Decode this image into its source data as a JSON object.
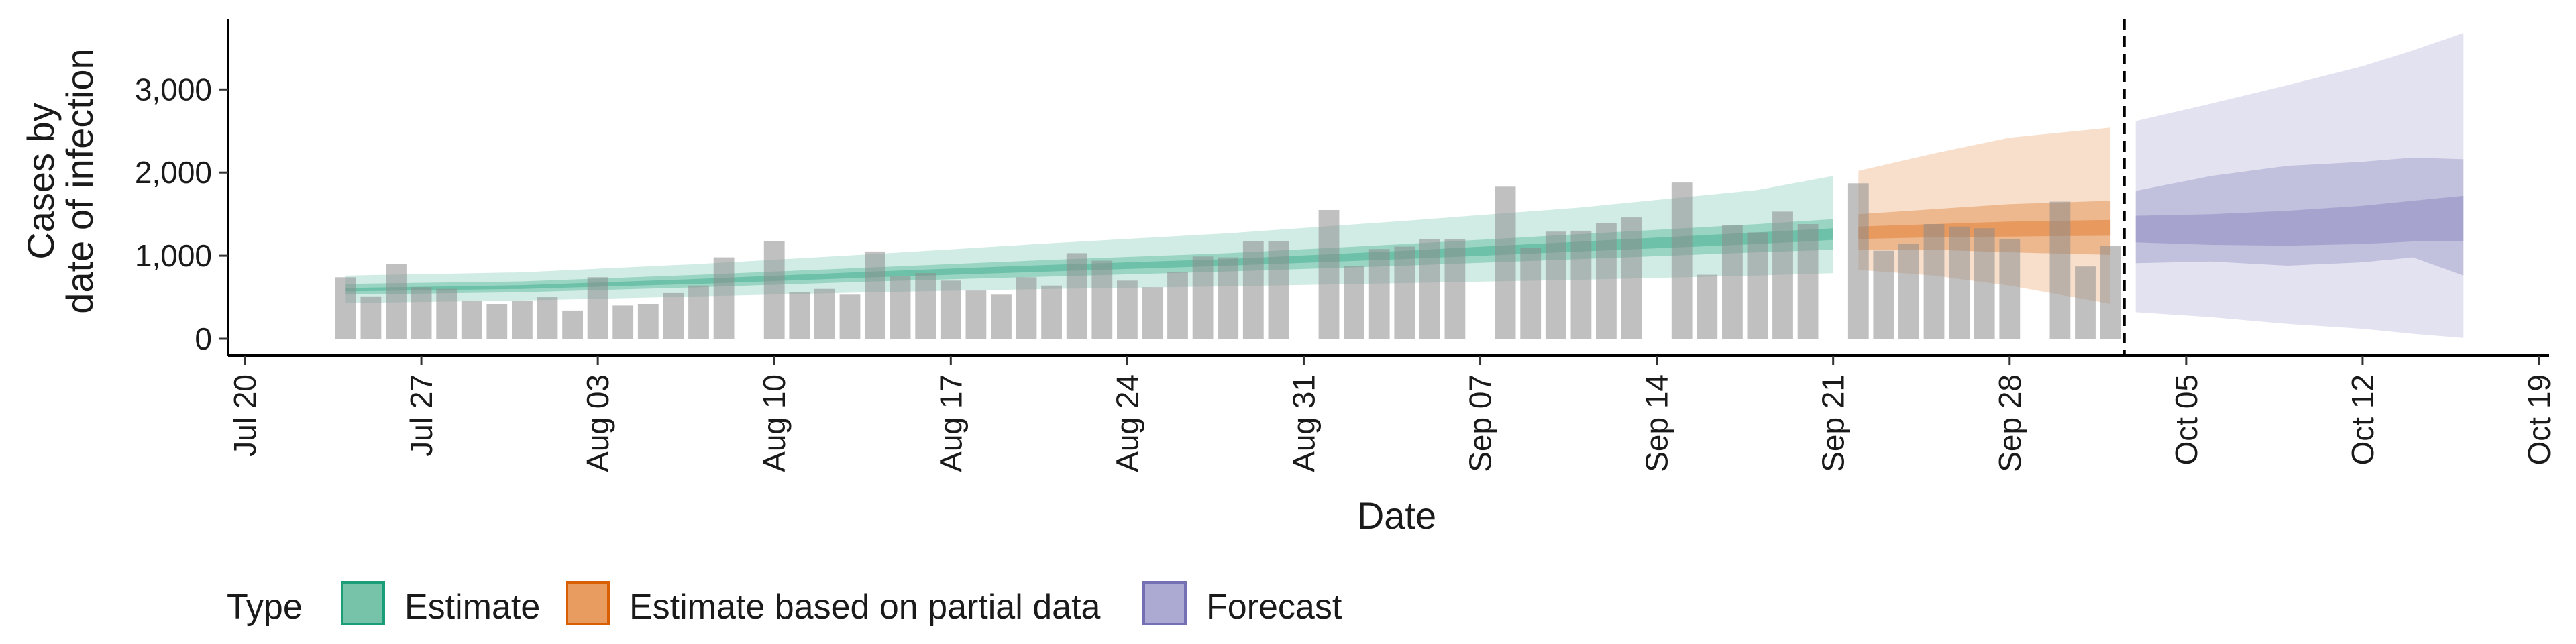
{
  "chart_data": {
    "type": "bar",
    "xlabel": "Date",
    "ylabel_lines": [
      "Cases by",
      "date of infection"
    ],
    "ylim": [
      0,
      3850
    ],
    "y_ticks": [
      0,
      1000,
      2000,
      3000
    ],
    "y_tick_labels": [
      "0",
      "1,000",
      "2,000",
      "3,000"
    ],
    "x_axis_start": "2020-07-20",
    "x_axis_end": "2020-10-19",
    "x_ticks": [
      "2020-07-20",
      "2020-07-27",
      "2020-08-03",
      "2020-08-10",
      "2020-08-17",
      "2020-08-24",
      "2020-08-31",
      "2020-09-07",
      "2020-09-14",
      "2020-09-21",
      "2020-09-28",
      "2020-10-05",
      "2020-10-12",
      "2020-10-19"
    ],
    "x_tick_labels": [
      "Jul 20",
      "Jul 27",
      "Aug 03",
      "Aug 10",
      "Aug 17",
      "Aug 24",
      "Aug 31",
      "Sep 07",
      "Sep 14",
      "Sep 21",
      "Sep 28",
      "Oct 05",
      "Oct 12",
      "Oct 19"
    ],
    "forecast_date": "2020-10-02",
    "observed_cases": {
      "dates": [
        "2020-07-24",
        "2020-07-25",
        "2020-07-26",
        "2020-07-27",
        "2020-07-28",
        "2020-07-29",
        "2020-07-30",
        "2020-07-31",
        "2020-08-01",
        "2020-08-02",
        "2020-08-03",
        "2020-08-04",
        "2020-08-05",
        "2020-08-06",
        "2020-08-07",
        "2020-08-08",
        "2020-08-09",
        "2020-08-10",
        "2020-08-11",
        "2020-08-12",
        "2020-08-13",
        "2020-08-14",
        "2020-08-15",
        "2020-08-16",
        "2020-08-17",
        "2020-08-18",
        "2020-08-19",
        "2020-08-20",
        "2020-08-21",
        "2020-08-22",
        "2020-08-23",
        "2020-08-24",
        "2020-08-25",
        "2020-08-26",
        "2020-08-27",
        "2020-08-28",
        "2020-08-29",
        "2020-08-30",
        "2020-08-31",
        "2020-09-01",
        "2020-09-02",
        "2020-09-03",
        "2020-09-04",
        "2020-09-05",
        "2020-09-06",
        "2020-09-07",
        "2020-09-08",
        "2020-09-09",
        "2020-09-10",
        "2020-09-11",
        "2020-09-12",
        "2020-09-13",
        "2020-09-14",
        "2020-09-15",
        "2020-09-16",
        "2020-09-17",
        "2020-09-18",
        "2020-09-19",
        "2020-09-20",
        "2020-09-21",
        "2020-09-22",
        "2020-09-23",
        "2020-09-24",
        "2020-09-25",
        "2020-09-26",
        "2020-09-27",
        "2020-09-28",
        "2020-09-29",
        "2020-09-30",
        "2020-10-01",
        "2020-10-02"
      ],
      "values": [
        740,
        510,
        900,
        620,
        600,
        460,
        420,
        460,
        500,
        340,
        740,
        400,
        420,
        550,
        640,
        980,
        0,
        1170,
        560,
        600,
        530,
        1050,
        750,
        790,
        700,
        580,
        530,
        740,
        640,
        1030,
        940,
        700,
        620,
        800,
        990,
        980,
        1170,
        1170,
        0,
        1550,
        880,
        1080,
        1110,
        1200,
        1200,
        0,
        1830,
        1090,
        1290,
        1300,
        1390,
        1460,
        0,
        1880,
        770,
        1370,
        1280,
        1530,
        1380,
        0,
        1870,
        1060,
        1140,
        1380,
        1350,
        1330,
        1200,
        0,
        1650,
        870,
        1120
      ]
    },
    "series": [
      {
        "name": "Estimate",
        "color": "#1b9e77",
        "dates": [
          "2020-07-24",
          "2020-07-31",
          "2020-08-07",
          "2020-08-14",
          "2020-08-21",
          "2020-08-28",
          "2020-09-04",
          "2020-09-11",
          "2020-09-18",
          "2020-09-21"
        ],
        "median": [
          590,
          620,
          690,
          770,
          850,
          920,
          1010,
          1110,
          1210,
          1260
        ],
        "ci20": [
          [
            570,
            610
          ],
          [
            600,
            645
          ],
          [
            660,
            720
          ],
          [
            740,
            810
          ],
          [
            810,
            890
          ],
          [
            880,
            960
          ],
          [
            960,
            1060
          ],
          [
            1050,
            1170
          ],
          [
            1140,
            1280
          ],
          [
            1190,
            1330
          ]
        ],
        "ci50": [
          [
            530,
            660
          ],
          [
            560,
            690
          ],
          [
            620,
            770
          ],
          [
            690,
            860
          ],
          [
            750,
            950
          ],
          [
            810,
            1030
          ],
          [
            880,
            1140
          ],
          [
            960,
            1260
          ],
          [
            1040,
            1380
          ],
          [
            1070,
            1440
          ]
        ],
        "ci90": [
          [
            430,
            760
          ],
          [
            460,
            800
          ],
          [
            510,
            900
          ],
          [
            560,
            1020
          ],
          [
            600,
            1150
          ],
          [
            630,
            1270
          ],
          [
            670,
            1420
          ],
          [
            710,
            1580
          ],
          [
            760,
            1790
          ],
          [
            790,
            1960
          ]
        ]
      },
      {
        "name": "Estimate based on partial data",
        "color": "#d95f02",
        "dates": [
          "2020-09-22",
          "2020-09-25",
          "2020-09-28",
          "2020-10-02"
        ],
        "median": [
          1270,
          1300,
          1320,
          1330
        ],
        "ci20": [
          [
            1200,
            1350
          ],
          [
            1220,
            1380
          ],
          [
            1230,
            1410
          ],
          [
            1240,
            1430
          ]
        ],
        "ci50": [
          [
            1070,
            1500
          ],
          [
            1070,
            1560
          ],
          [
            1040,
            1620
          ],
          [
            1010,
            1660
          ]
        ],
        "ci90": [
          [
            830,
            2020
          ],
          [
            760,
            2230
          ],
          [
            640,
            2420
          ],
          [
            420,
            2540
          ]
        ]
      },
      {
        "name": "Forecast",
        "color": "#7570b3",
        "dates": [
          "2020-10-03",
          "2020-10-06",
          "2020-10-09",
          "2020-10-12",
          "2020-10-14",
          "2020-10-16"
        ],
        "median": [
          1320,
          1340,
          1360,
          1380,
          1400,
          1420
        ],
        "ci20": [
          [
            1160,
            1480
          ],
          [
            1130,
            1500
          ],
          [
            1120,
            1540
          ],
          [
            1140,
            1600
          ],
          [
            1170,
            1660
          ],
          [
            1170,
            1720
          ]
        ],
        "ci50": [
          [
            910,
            1780
          ],
          [
            930,
            1960
          ],
          [
            880,
            2080
          ],
          [
            920,
            2130
          ],
          [
            980,
            2180
          ],
          [
            760,
            2160
          ]
        ],
        "ci90": [
          [
            320,
            2620
          ],
          [
            260,
            2830
          ],
          [
            180,
            3050
          ],
          [
            120,
            3280
          ],
          [
            60,
            3470
          ],
          [
            10,
            3680
          ]
        ]
      }
    ],
    "legend": {
      "title": "Type",
      "position": "bottom-left",
      "entries": [
        "Estimate",
        "Estimate based on partial data",
        "Forecast"
      ]
    },
    "grid": false
  }
}
